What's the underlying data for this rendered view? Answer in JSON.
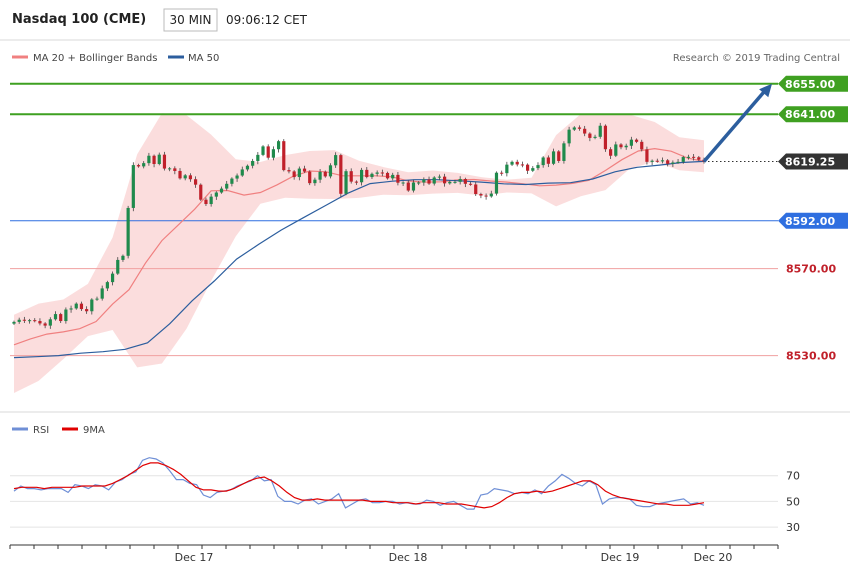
{
  "header": {
    "symbol": "Nasdaq 100 (CME)",
    "timeframe": "30 MIN",
    "time": "09:06:12 CET"
  },
  "legend": {
    "bb_label": "MA 20 + Bollinger Bands",
    "ma50_label": "MA 50",
    "rsi_label": "RSI",
    "ma9_label": "9MA"
  },
  "credit": "Research © 2019 Trading Central",
  "colors": {
    "up": "#1f8a4c",
    "down": "#c0202a",
    "bb_fill": "#fbd9d9",
    "ma20": "#f08080",
    "ma50": "#2c5e9e",
    "resistance": "#3fa021",
    "support": "#2f6fe0",
    "pivot_line": "#f0a0a0",
    "last_price": "#333333",
    "rsi": "#6f8fd6",
    "rsi_ma": "#e00000",
    "arrow": "#2c5e9e"
  },
  "chart_data": [
    {
      "type": "candlestick",
      "title": "Nasdaq 100 (CME)",
      "timeframe": "30 MIN",
      "ylim": [
        8505,
        8665
      ],
      "x_date_labels": [
        "Dec 17",
        "Dec 18",
        "Dec 19",
        "Dec 20"
      ],
      "horizontal_levels": [
        {
          "value": 8655.0,
          "label": "8655.00",
          "kind": "resistance"
        },
        {
          "value": 8641.0,
          "label": "8641.00",
          "kind": "resistance"
        },
        {
          "value": 8619.25,
          "label": "8619.25",
          "kind": "last"
        },
        {
          "value": 8592.0,
          "label": "8592.00",
          "kind": "support"
        },
        {
          "value": 8570.0,
          "label": "8570.00",
          "kind": "pivot"
        },
        {
          "value": 8530.0,
          "label": "8530.00",
          "kind": "pivot"
        }
      ],
      "projection": {
        "from_value": 8619.25,
        "to_value": 8655.0
      },
      "closes": [
        8545.5,
        8546.5,
        8546.2,
        8546.3,
        8545.9,
        8544.8,
        8543.8,
        8546.7,
        8549.1,
        8545.9,
        8551.2,
        8551.7,
        8553.9,
        8551.4,
        8550.4,
        8555.8,
        8556.2,
        8560.9,
        8563.8,
        8567.7,
        8574.0,
        8575.9,
        8597.9,
        8617.6,
        8617.0,
        8618.5,
        8621.9,
        8618.1,
        8622.4,
        8616.0,
        8616.1,
        8614.9,
        8611.5,
        8612.9,
        8611.1,
        8608.6,
        8601.7,
        8599.7,
        8603.1,
        8605.0,
        8606.8,
        8609.0,
        8611.4,
        8612.8,
        8615.6,
        8617.3,
        8619.5,
        8622.3,
        8626.2,
        8621.0,
        8624.9,
        8628.6,
        8615.3,
        8614.7,
        8612.1,
        8616.0,
        8614.6,
        8609.3,
        8610.9,
        8614.5,
        8612.4,
        8617.5,
        8622.2,
        8604.4,
        8614.8,
        8610.0,
        8609.7,
        8615.4,
        8612.1,
        8613.6,
        8614.2,
        8614.0,
        8611.5,
        8613.1,
        8609.5,
        8609.6,
        8605.9,
        8609.6,
        8609.6,
        8611.0,
        8609.1,
        8611.9,
        8612.3,
        8609.2,
        8609.9,
        8609.9,
        8611.2,
        8609.0,
        8608.7,
        8604.3,
        8603.6,
        8603.2,
        8604.5,
        8614.1,
        8613.9,
        8617.8,
        8619.1,
        8617.9,
        8617.8,
        8615.0,
        8616.2,
        8617.6,
        8621.1,
        8618.2,
        8623.9,
        8619.5,
        8627.6,
        8633.9,
        8634.9,
        8634.3,
        8632.1,
        8630.1,
        8630.6,
        8635.7,
        8624.9,
        8621.9,
        8627.1,
        8625.8,
        8626.5,
        8629.3,
        8628.3,
        8624.8,
        8619.1,
        8619.6,
        8619.3,
        8619.8,
        8618.2,
        8618.8,
        8619.1,
        8621.3,
        8621.4,
        8621.2,
        8620.1,
        8619.2
      ],
      "ma20_values": [
        8535.0,
        8537.7,
        8539.9,
        8540.9,
        8542.4,
        8545.7,
        8553.7,
        8560.3,
        8572.5,
        8582.9,
        8590.1,
        8597.3,
        8605.8,
        8605.9,
        8603.8,
        8605.0,
        8608.5,
        8612.5,
        8614.9,
        8614.5,
        8612.7,
        8612.7,
        8612.7,
        8612.2,
        8610.3,
        8609.8,
        8609.9,
        8610.8,
        8611.0,
        8610.3,
        8609.8,
        8609.0,
        8608.1,
        8608.4,
        8609.2,
        8610.6,
        8615.1,
        8620.1,
        8624.1,
        8625.2,
        8624.0,
        8620.8,
        8619.3
      ],
      "ma50_values": [
        8529.1,
        8529.5,
        8530.0,
        8531.1,
        8531.8,
        8532.9,
        8535.9,
        8544.7,
        8555.2,
        8564.3,
        8574.4,
        8581.2,
        8587.7,
        8593.4,
        8599.0,
        8604.7,
        8609.1,
        8610.2,
        8610.9,
        8610.9,
        8610.4,
        8609.8,
        8609.0,
        8608.7,
        8609.3,
        8609.5,
        8611.2,
        8614.5,
        8616.6,
        8617.6,
        8618.8,
        8619.3
      ],
      "bollinger_upper": [
        8548.8,
        8553.9,
        8555.8,
        8563.0,
        8584.3,
        8622.6,
        8641.4,
        8640.6,
        8631.6,
        8620.3,
        8619.0,
        8622.2,
        8624.1,
        8624.5,
        8619.6,
        8616.7,
        8614.3,
        8615.1,
        8614.0,
        8612.0,
        8610.9,
        8611.8,
        8631.4,
        8641.1,
        8641.3,
        8640.8,
        8637.4,
        8630.4,
        8629.0
      ],
      "bollinger_lower": [
        8512.8,
        8518.4,
        8528.4,
        8539.0,
        8541.8,
        8524.6,
        8526.4,
        8542.4,
        8564.3,
        8584.9,
        8599.8,
        8602.6,
        8602.1,
        8602.0,
        8602.5,
        8604.0,
        8603.7,
        8604.5,
        8604.8,
        8603.6,
        8605.0,
        8604.6,
        8598.6,
        8603.3,
        8606.1,
        8616.1,
        8619.1,
        8615.2,
        8614.3
      ]
    },
    {
      "type": "line",
      "title": "RSI",
      "ylim": [
        20,
        90
      ],
      "y_ticks": [
        30,
        50,
        70
      ],
      "series": [
        {
          "name": "RSI",
          "values": [
            58,
            62,
            60,
            60,
            59,
            60,
            60,
            60,
            57,
            63,
            62,
            60,
            63,
            62,
            59,
            65,
            67,
            71,
            73,
            82,
            84,
            83,
            80,
            74,
            67,
            67,
            64,
            63,
            55,
            53,
            57,
            58,
            59,
            62,
            64,
            66,
            70,
            66,
            67,
            54,
            50,
            50,
            48,
            51,
            52,
            48,
            50,
            52,
            56,
            45,
            48,
            51,
            52,
            49,
            49,
            50,
            50,
            48,
            49,
            48,
            48,
            51,
            50,
            47,
            49,
            50,
            47,
            44,
            44,
            55,
            56,
            60,
            59,
            58,
            56,
            57,
            56,
            59,
            56,
            62,
            66,
            71,
            68,
            64,
            62,
            66,
            63,
            48,
            52,
            53,
            53,
            52,
            47,
            46,
            46,
            48,
            49,
            50,
            51,
            52,
            48,
            49,
            47
          ]
        },
        {
          "name": "9MA",
          "values": [
            60,
            61,
            61,
            61,
            60,
            61,
            61,
            61,
            61,
            62,
            62,
            62,
            62,
            64,
            67,
            70,
            74,
            78,
            80,
            80,
            78,
            75,
            71,
            66,
            61,
            59,
            59,
            58,
            58,
            60,
            63,
            66,
            68,
            69,
            66,
            62,
            57,
            53,
            51,
            51,
            52,
            51,
            51,
            51,
            51,
            51,
            51,
            50,
            50,
            50,
            49,
            49,
            49,
            48,
            49,
            49,
            49,
            48,
            48,
            48,
            47,
            46,
            45,
            46,
            49,
            53,
            56,
            57,
            57,
            58,
            57,
            58,
            60,
            62,
            64,
            66,
            66,
            63,
            58,
            55,
            53,
            52,
            51,
            50,
            49,
            48,
            48,
            47,
            47,
            47,
            48,
            49
          ]
        }
      ]
    }
  ]
}
